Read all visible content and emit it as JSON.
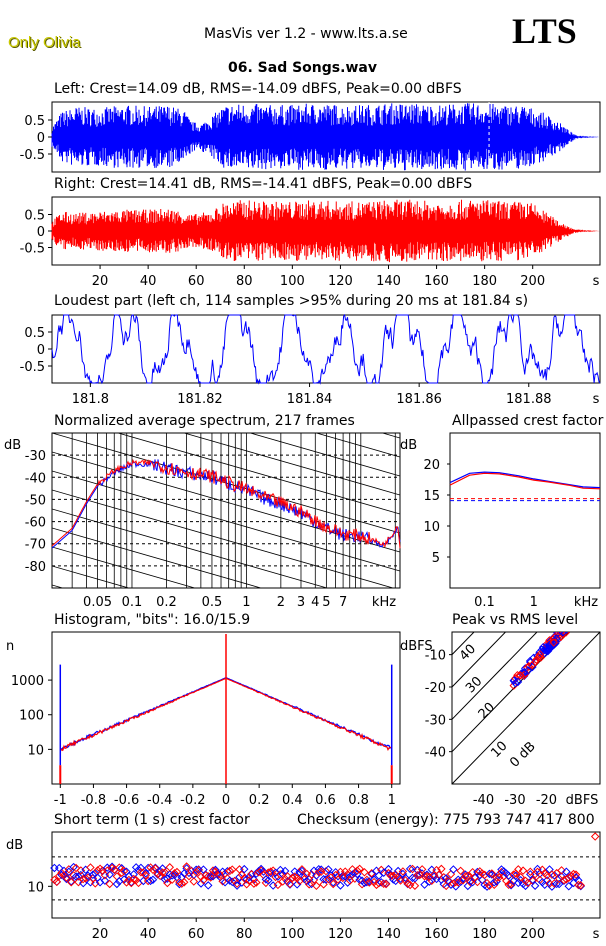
{
  "header": {
    "brand": "Only Olivia",
    "title": "MasVis ver 1.2 - www.lts.a.se",
    "logo": "LTS",
    "file": "06. Sad Songs.wav"
  },
  "colors": {
    "left": "#0000ff",
    "right": "#ff0000"
  },
  "chart_data": [
    {
      "id": "left",
      "type": "area",
      "title": "Left: Crest=14.09 dB, RMS=-14.09 dBFS, Peak=0.00 dBFS",
      "ylim": [
        -1,
        1
      ],
      "yticks": [
        "0.5",
        "0",
        "-0.5"
      ],
      "xlim": [
        0,
        228
      ],
      "marker_s": 181.84,
      "envelope": {
        "t": [
          0,
          4,
          10,
          20,
          30,
          40,
          48,
          55,
          58,
          62,
          66,
          72,
          80,
          90,
          100,
          110,
          120,
          130,
          140,
          150,
          160,
          170,
          180,
          190,
          196,
          200,
          205,
          210,
          215,
          218,
          228
        ],
        "amp": [
          0.3,
          0.75,
          0.9,
          0.85,
          0.95,
          0.9,
          0.95,
          0.8,
          0.45,
          0.4,
          0.6,
          0.95,
          1.0,
          0.95,
          0.95,
          1.0,
          0.95,
          0.95,
          1.0,
          1.0,
          0.95,
          1.0,
          1.0,
          0.95,
          0.95,
          0.85,
          0.7,
          0.5,
          0.2,
          0.05,
          0.0
        ]
      }
    },
    {
      "id": "right",
      "type": "area",
      "title": "Right: Crest=14.41 dB, RMS=-14.41 dBFS, Peak=0.00 dBFS",
      "ylim": [
        -1,
        1
      ],
      "yticks": [
        "0.5",
        "0",
        "-0.5"
      ],
      "xlim": [
        0,
        228
      ],
      "xticks": [
        20,
        40,
        60,
        80,
        100,
        120,
        140,
        160,
        180,
        200
      ],
      "xunit": "s",
      "envelope": {
        "t": [
          0,
          4,
          10,
          20,
          30,
          40,
          48,
          55,
          58,
          62,
          66,
          72,
          80,
          90,
          100,
          110,
          120,
          130,
          140,
          150,
          160,
          170,
          180,
          190,
          196,
          200,
          205,
          210,
          215,
          218,
          228
        ],
        "amp": [
          0.3,
          0.6,
          0.55,
          0.6,
          0.65,
          0.65,
          0.7,
          0.6,
          0.5,
          0.55,
          0.6,
          0.9,
          0.95,
          0.9,
          0.9,
          0.95,
          0.9,
          0.9,
          0.95,
          0.95,
          0.9,
          0.95,
          0.95,
          0.9,
          0.9,
          0.85,
          0.6,
          0.35,
          0.15,
          0.05,
          0.0
        ]
      }
    },
    {
      "id": "loudest",
      "type": "line",
      "title": "Loudest part (left  ch, 114 samples >95% during 20 ms at 181.84 s)",
      "ylim": [
        -1,
        1
      ],
      "yticks": [
        "0.5",
        "0",
        "-0.5"
      ],
      "xlim": [
        181.793,
        181.893
      ],
      "xticks": [
        "181.8",
        "181.82",
        "181.84",
        "181.86",
        "181.88"
      ],
      "xunit": "s"
    },
    {
      "id": "spectrum",
      "type": "line",
      "title": "Normalized average spectrum, 217 frames",
      "ylabel": "dB",
      "yticks": [
        "-30",
        "-40",
        "-50",
        "-60",
        "-70",
        "-80"
      ],
      "ylim": [
        -90,
        -20
      ],
      "xlim_khz": [
        0.02,
        22
      ],
      "xticks": [
        "0.05",
        "0.1",
        "0.2",
        "0.5",
        "1",
        "2",
        "3",
        "4",
        "5",
        "7"
      ],
      "xunit": "kHz",
      "series": [
        {
          "color": "blue",
          "f": [
            0.02,
            0.03,
            0.04,
            0.05,
            0.07,
            0.1,
            0.15,
            0.2,
            0.3,
            0.5,
            0.7,
            1,
            1.5,
            2,
            3,
            4,
            5,
            7,
            10,
            13,
            16,
            19,
            21,
            22
          ],
          "db": [
            -72,
            -64,
            -52,
            -44,
            -38,
            -34,
            -34,
            -36,
            -38,
            -40,
            -43,
            -46,
            -50,
            -52,
            -56,
            -60,
            -63,
            -66,
            -67,
            -69,
            -71,
            -66,
            -62,
            -70
          ]
        },
        {
          "color": "red",
          "f": [
            0.02,
            0.03,
            0.04,
            0.05,
            0.07,
            0.1,
            0.15,
            0.2,
            0.3,
            0.5,
            0.7,
            1,
            1.5,
            2,
            3,
            4,
            5,
            7,
            10,
            13,
            16,
            19,
            21,
            22
          ],
          "db": [
            -71,
            -63,
            -51,
            -43,
            -37,
            -33.5,
            -33.5,
            -35.5,
            -37.5,
            -39.5,
            -42.5,
            -45.5,
            -49.5,
            -51.5,
            -55.5,
            -59.5,
            -62.5,
            -65.5,
            -66.5,
            -68.5,
            -70.5,
            -65.5,
            -61,
            -72
          ]
        }
      ]
    },
    {
      "id": "allpassed",
      "type": "line",
      "title": "Allpassed crest factor",
      "ylabel": "dB",
      "yticks": [
        "20",
        "15",
        "10",
        "5"
      ],
      "ylim": [
        0,
        25
      ],
      "xticks": [
        "0.1",
        "1"
      ],
      "xunit": "kHz",
      "series": [
        {
          "color": "blue",
          "f": [
            0.02,
            0.05,
            0.1,
            0.2,
            0.5,
            1,
            2,
            5,
            10,
            22
          ],
          "crest": [
            17,
            18.5,
            18.7,
            18.6,
            18.1,
            17.6,
            17.2,
            16.7,
            16.3,
            16.2
          ],
          "flat": 14.09
        },
        {
          "color": "red",
          "f": [
            0.02,
            0.05,
            0.1,
            0.2,
            0.5,
            1,
            2,
            5,
            10,
            22
          ],
          "crest": [
            16.6,
            18.2,
            18.5,
            18.4,
            17.9,
            17.4,
            17.1,
            16.6,
            16.1,
            16.0
          ],
          "flat": 14.41
        }
      ]
    },
    {
      "id": "histogram",
      "type": "line",
      "title": "Histogram, \"bits\": 16.0/15.9",
      "ylabel": "n",
      "yticks": [
        "1000",
        "100",
        "10"
      ],
      "xticks": [
        "-1",
        "-0.8",
        "-0.6",
        "-0.4",
        "-0.2",
        "0",
        "0.2",
        "0.4",
        "0.6",
        "0.8",
        "1"
      ],
      "xlim": [
        -1.05,
        1.05
      ]
    },
    {
      "id": "peakrms",
      "type": "scatter",
      "title": "Peak vs RMS level",
      "ylabel": "dBFS",
      "xlabel": "dBFS",
      "yticks": [
        "-10",
        "-20",
        "-30",
        "-40"
      ],
      "xticks": [
        "-40",
        "-30",
        "-20"
      ],
      "xlim": [
        -50,
        -3
      ],
      "ylim": [
        -50,
        -3
      ],
      "diag_labels": [
        "40",
        "30",
        "20",
        "10",
        "0 dB"
      ]
    },
    {
      "id": "shortcrest",
      "type": "scatter",
      "title": "Short term (1 s) crest factor",
      "checksum": "Checksum (energy):   775 793 747 417 800",
      "ylabel": "dB",
      "yticks": [
        "10"
      ],
      "xticks": [
        20,
        40,
        60,
        80,
        100,
        120,
        140,
        160,
        180,
        200
      ],
      "xunit": "s",
      "xlim": [
        0,
        228
      ],
      "ylim": [
        3,
        22
      ]
    }
  ]
}
